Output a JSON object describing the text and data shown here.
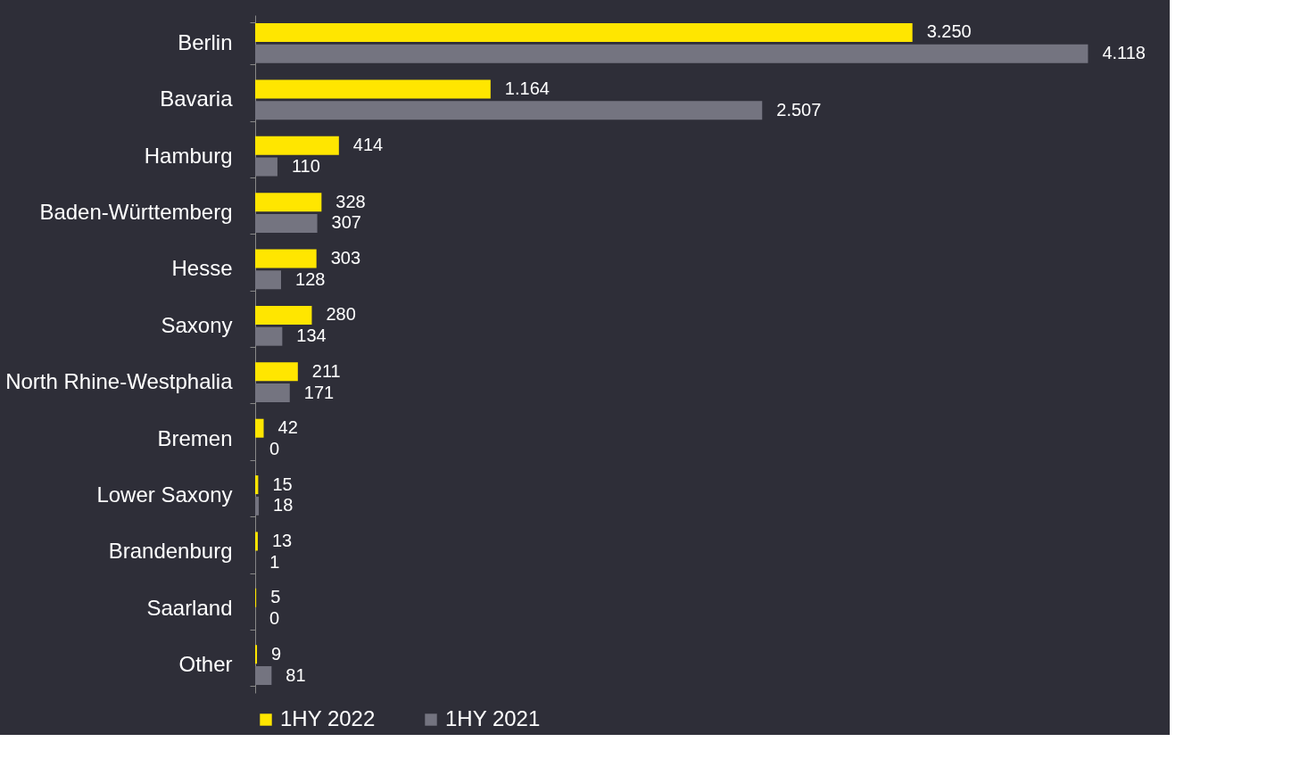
{
  "chart_data": {
    "type": "bar",
    "orientation": "horizontal",
    "legend": "bottom",
    "categories": [
      "Berlin",
      "Bavaria",
      "Hamburg",
      "Baden-Württemberg",
      "Hesse",
      "Saxony",
      "North Rhine-Westphalia",
      "Bremen",
      "Lower Saxony",
      "Brandenburg",
      "Saarland",
      "Other"
    ],
    "series": [
      {
        "name": "1HY 2022",
        "color": "#ffe600",
        "values": [
          3250,
          1164,
          414,
          328,
          303,
          280,
          211,
          42,
          15,
          13,
          5,
          9
        ],
        "value_labels": [
          "3.250",
          "1.164",
          "414",
          "328",
          "303",
          "280",
          "211",
          "42",
          "15",
          "13",
          "5",
          "9"
        ]
      },
      {
        "name": "1HY 2021",
        "color": "#747480",
        "values": [
          4118,
          2507,
          110,
          307,
          128,
          134,
          171,
          0,
          18,
          1,
          0,
          81
        ],
        "value_labels": [
          "4.118",
          "2.507",
          "110",
          "307",
          "128",
          "134",
          "171",
          "0",
          "18",
          "1",
          "0",
          "81"
        ]
      }
    ]
  }
}
